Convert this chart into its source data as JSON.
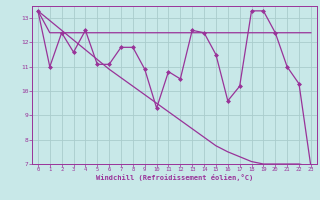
{
  "x": [
    0,
    1,
    2,
    3,
    4,
    5,
    6,
    7,
    8,
    9,
    10,
    11,
    12,
    13,
    14,
    15,
    16,
    17,
    18,
    19,
    20,
    21,
    22,
    23
  ],
  "y_actual": [
    13.3,
    11.0,
    12.4,
    11.6,
    12.5,
    11.1,
    11.1,
    11.8,
    11.8,
    10.9,
    9.3,
    10.8,
    10.5,
    12.5,
    12.4,
    11.5,
    9.6,
    10.2,
    13.3,
    13.3,
    12.4,
    11.0,
    10.3,
    6.9
  ],
  "y_smooth": [
    13.3,
    12.4,
    12.4,
    12.4,
    12.4,
    12.4,
    12.4,
    12.4,
    12.4,
    12.4,
    12.4,
    12.4,
    12.4,
    12.4,
    12.4,
    12.4,
    12.4,
    12.4,
    12.4,
    12.4,
    12.4,
    12.4,
    12.4,
    12.4
  ],
  "y_trend": [
    13.3,
    12.9,
    12.5,
    12.1,
    11.7,
    11.3,
    10.9,
    10.55,
    10.2,
    9.85,
    9.5,
    9.15,
    8.8,
    8.45,
    8.1,
    7.75,
    7.5,
    7.3,
    7.1,
    7.0,
    7.0,
    7.0,
    7.0,
    6.9
  ],
  "ylim": [
    7,
    13.5
  ],
  "xlim": [
    -0.5,
    23.5
  ],
  "yticks": [
    7,
    8,
    9,
    10,
    11,
    12,
    13
  ],
  "xticks": [
    0,
    1,
    2,
    3,
    4,
    5,
    6,
    7,
    8,
    9,
    10,
    11,
    12,
    13,
    14,
    15,
    16,
    17,
    18,
    19,
    20,
    21,
    22,
    23
  ],
  "line_color": "#993399",
  "bg_color": "#c8e8e8",
  "grid_color": "#aacccc",
  "xlabel": "Windchill (Refroidissement éolien,°C)"
}
